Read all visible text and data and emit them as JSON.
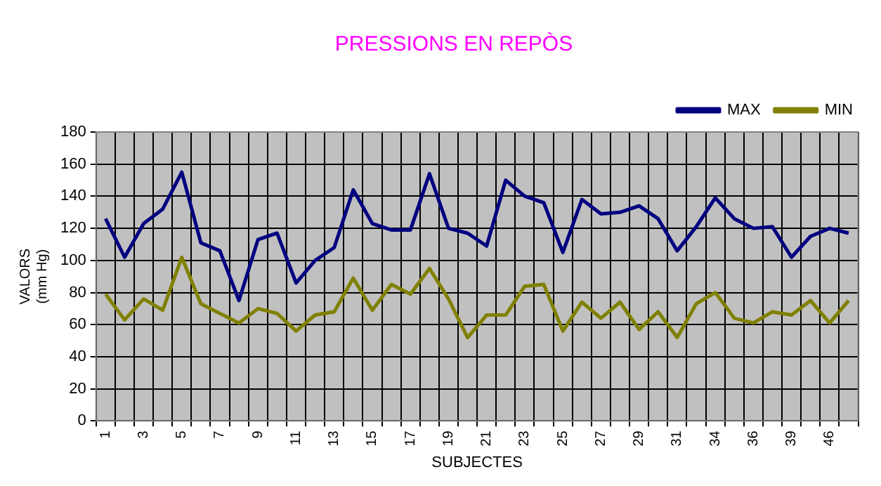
{
  "chart_data": {
    "type": "line",
    "title": "PRESSIONS EN REPÒS",
    "xlabel": "SUBJECTES",
    "ylabel": "VALORS\n(mm Hg)",
    "categories": [
      "1",
      null,
      "3",
      null,
      "5",
      null,
      "7",
      null,
      "9",
      null,
      "11",
      null,
      "13",
      null,
      "15",
      null,
      "17",
      null,
      "19",
      null,
      "21",
      null,
      "23",
      null,
      "25",
      null,
      "27",
      null,
      "29",
      null,
      "31",
      null,
      "34",
      null,
      "36",
      null,
      "39",
      null,
      "46",
      null
    ],
    "series": [
      {
        "name": "MAX",
        "color": "#000080",
        "values": [
          126,
          102,
          123,
          132,
          155,
          111,
          106,
          75,
          113,
          117,
          86,
          100,
          108,
          144,
          123,
          119,
          119,
          154,
          120,
          117,
          109,
          150,
          140,
          136,
          105,
          138,
          129,
          130,
          134,
          126,
          106,
          121,
          139,
          126,
          120,
          121,
          102,
          115,
          120,
          117
        ]
      },
      {
        "name": "MIN",
        "color": "#808000",
        "values": [
          79,
          63,
          76,
          69,
          102,
          73,
          67,
          61,
          70,
          67,
          56,
          66,
          68,
          89,
          69,
          85,
          79,
          95,
          76,
          52,
          66,
          66,
          84,
          85,
          56,
          74,
          64,
          74,
          57,
          68,
          52,
          73,
          80,
          64,
          61,
          68,
          66,
          75,
          61,
          75
        ]
      }
    ],
    "ylim": [
      0,
      180
    ],
    "yticks": [
      0,
      20,
      40,
      60,
      80,
      100,
      120,
      140,
      160,
      180
    ],
    "grid": true,
    "legend": "top right",
    "marker": "none",
    "line_style": "solid"
  }
}
